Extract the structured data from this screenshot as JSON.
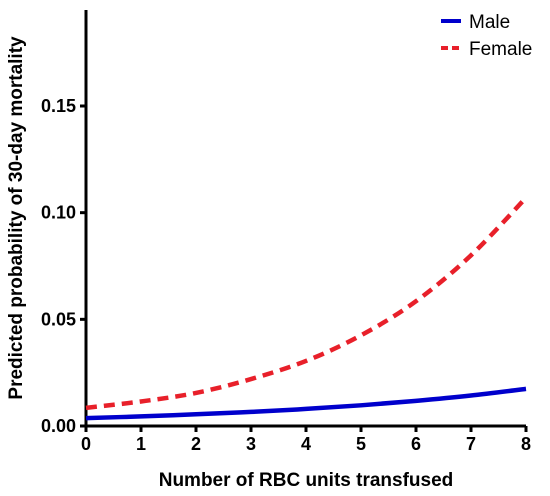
{
  "chart_data": {
    "type": "line",
    "title": "",
    "xlabel": "Number of RBC units transfused",
    "ylabel": "Predicted probability of 30-day mortality",
    "xlim": [
      0,
      8
    ],
    "ylim": [
      0,
      0.195
    ],
    "x_ticks": [
      "0",
      "1",
      "2",
      "3",
      "4",
      "5",
      "6",
      "7",
      "8"
    ],
    "y_ticks": [
      "0.00",
      "0.05",
      "0.10",
      "0.15"
    ],
    "x": [
      0,
      1,
      2,
      3,
      4,
      5,
      6,
      7,
      8
    ],
    "series": [
      {
        "name": "Male",
        "color": "#0000cc",
        "style": "solid",
        "values": [
          0.0037,
          0.0045,
          0.0055,
          0.0066,
          0.008,
          0.0097,
          0.0118,
          0.0143,
          0.0174
        ]
      },
      {
        "name": "Female",
        "color": "#e8202a",
        "style": "dashed",
        "values": [
          0.0085,
          0.0115,
          0.0155,
          0.022,
          0.0305,
          0.0425,
          0.0585,
          0.08,
          0.107
        ]
      }
    ],
    "legend_position": "top-right",
    "grid": false
  }
}
